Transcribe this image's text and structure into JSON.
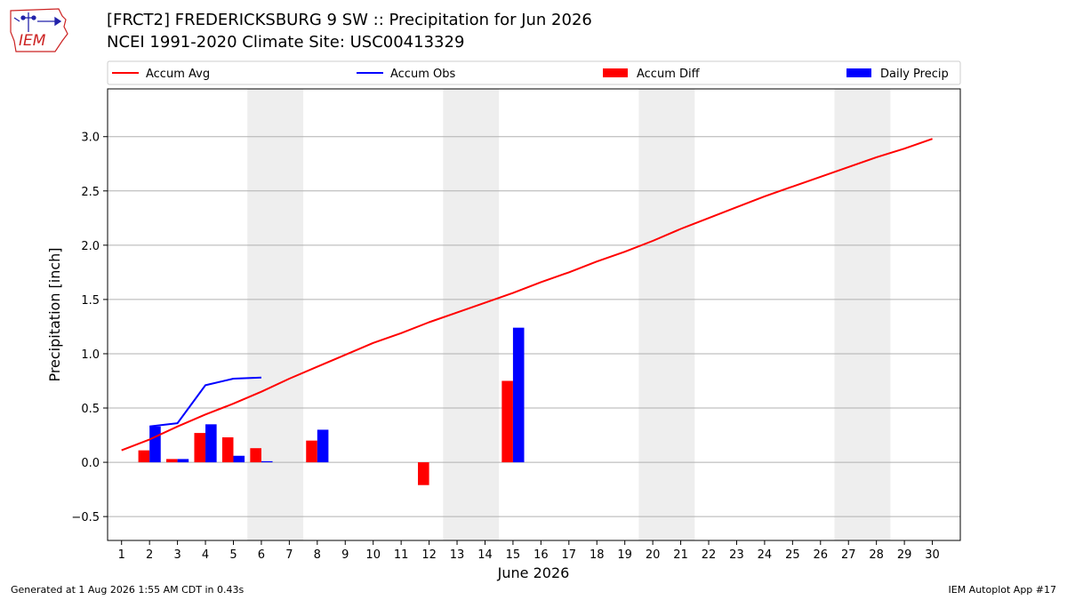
{
  "header": {
    "title": "[FRCT2] FREDERICKSBURG 9 SW :: Precipitation for Jun 2026",
    "subtitle": "NCEI 1991-2020 Climate Site: USC00413329",
    "logo_text": "IEM"
  },
  "footer": {
    "left": "Generated at 1 Aug 2026 1:55 AM CDT in 0.43s",
    "right": "IEM Autoplot App #17"
  },
  "colors": {
    "accum_avg": "#ff0000",
    "accum_obs": "#0000ff",
    "accum_diff": "#ff0000",
    "daily_precip": "#0000ff",
    "weekend_shade": "#eeeeee",
    "grid": "#b0b0b0"
  },
  "chart_data": {
    "type": "bar",
    "xlabel": "June 2026",
    "ylabel": "Precipitation [inch]",
    "xlim": [
      0.5,
      31
    ],
    "ylim": [
      -0.72,
      3.44
    ],
    "yticks": [
      -0.5,
      0.0,
      0.5,
      1.0,
      1.5,
      2.0,
      2.5,
      3.0
    ],
    "ytick_labels": [
      "−0.5",
      "0.0",
      "0.5",
      "1.0",
      "1.5",
      "2.0",
      "2.5",
      "3.0"
    ],
    "xticks": [
      1,
      2,
      3,
      4,
      5,
      6,
      7,
      8,
      9,
      10,
      11,
      12,
      13,
      14,
      15,
      16,
      17,
      18,
      19,
      20,
      21,
      22,
      23,
      24,
      25,
      26,
      27,
      28,
      29,
      30
    ],
    "grid": "horizontal",
    "legend_position": "top",
    "weekend_shading": [
      [
        6,
        7
      ],
      [
        13,
        14
      ],
      [
        20,
        21
      ],
      [
        27,
        28
      ]
    ],
    "legend": [
      {
        "label": "Accum Avg",
        "kind": "line",
        "color": "#ff0000"
      },
      {
        "label": "Accum Obs",
        "kind": "line",
        "color": "#0000ff"
      },
      {
        "label": "Accum Diff",
        "kind": "bar",
        "color": "#ff0000"
      },
      {
        "label": "Daily Precip",
        "kind": "bar",
        "color": "#0000ff"
      }
    ],
    "accum_avg": {
      "x": [
        1,
        2,
        3,
        4,
        5,
        6,
        7,
        8,
        9,
        10,
        11,
        12,
        13,
        14,
        15,
        16,
        17,
        18,
        19,
        20,
        21,
        22,
        23,
        24,
        25,
        26,
        27,
        28,
        29,
        30
      ],
      "y": [
        0.11,
        0.21,
        0.33,
        0.44,
        0.54,
        0.65,
        0.77,
        0.88,
        0.99,
        1.1,
        1.19,
        1.29,
        1.38,
        1.47,
        1.56,
        1.66,
        1.75,
        1.85,
        1.94,
        2.04,
        2.15,
        2.25,
        2.35,
        2.45,
        2.54,
        2.63,
        2.72,
        2.81,
        2.89,
        2.98
      ]
    },
    "accum_obs": {
      "x": [
        2,
        3,
        4,
        5,
        6
      ],
      "y": [
        0.33,
        0.36,
        0.71,
        0.77,
        0.78
      ]
    },
    "accum_diff": {
      "x": [
        2,
        3,
        4,
        5,
        6,
        8,
        12,
        15
      ],
      "y": [
        0.11,
        0.03,
        0.27,
        0.23,
        0.13,
        0.2,
        -0.21,
        0.75
      ]
    },
    "daily_precip": {
      "x": [
        2,
        3,
        4,
        5,
        6,
        8,
        15
      ],
      "y": [
        0.33,
        0.03,
        0.35,
        0.06,
        0.01,
        0.3,
        1.24
      ]
    }
  }
}
